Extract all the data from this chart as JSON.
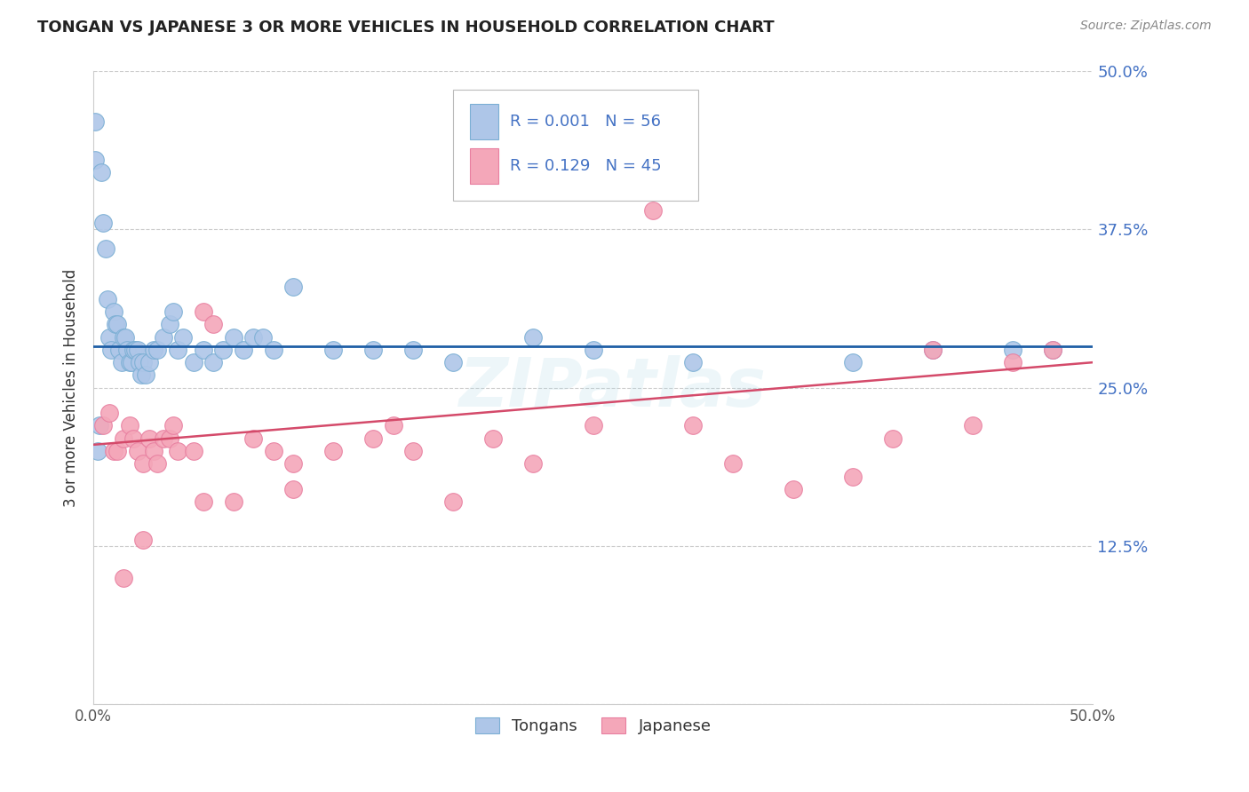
{
  "title": "TONGAN VS JAPANESE 3 OR MORE VEHICLES IN HOUSEHOLD CORRELATION CHART",
  "source": "Source: ZipAtlas.com",
  "ylabel": "3 or more Vehicles in Household",
  "xlim": [
    0.0,
    0.5
  ],
  "ylim": [
    0.0,
    0.5
  ],
  "ytick_vals": [
    0.0,
    0.125,
    0.25,
    0.375,
    0.5
  ],
  "ytick_labels": [
    "",
    "12.5%",
    "25.0%",
    "37.5%",
    "50.0%"
  ],
  "tongan_color": "#aec6e8",
  "japanese_color": "#f4a7b9",
  "tongan_line_color": "#1f5fa6",
  "japanese_line_color": "#d44a6a",
  "tongan_edge_color": "#7bafd4",
  "japanese_edge_color": "#e87fa0",
  "legend_text_color": "#4472C4",
  "legend_R_tongan": "R = 0.001",
  "legend_N_tongan": "N = 56",
  "legend_R_japanese": "R = 0.129",
  "legend_N_japanese": "N = 45",
  "background_color": "#ffffff",
  "grid_color": "#cccccc",
  "watermark": "ZIPatlas",
  "tongan_x": [
    0.001,
    0.001,
    0.002,
    0.003,
    0.004,
    0.005,
    0.006,
    0.007,
    0.008,
    0.009,
    0.01,
    0.011,
    0.012,
    0.013,
    0.014,
    0.015,
    0.016,
    0.017,
    0.018,
    0.019,
    0.02,
    0.021,
    0.022,
    0.023,
    0.024,
    0.025,
    0.026,
    0.028,
    0.03,
    0.032,
    0.035,
    0.038,
    0.04,
    0.042,
    0.045,
    0.05,
    0.055,
    0.06,
    0.065,
    0.07,
    0.075,
    0.08,
    0.085,
    0.09,
    0.1,
    0.12,
    0.14,
    0.16,
    0.18,
    0.22,
    0.25,
    0.3,
    0.38,
    0.42,
    0.46,
    0.48
  ],
  "tongan_y": [
    0.46,
    0.43,
    0.2,
    0.22,
    0.42,
    0.38,
    0.36,
    0.32,
    0.29,
    0.28,
    0.31,
    0.3,
    0.3,
    0.28,
    0.27,
    0.29,
    0.29,
    0.28,
    0.27,
    0.27,
    0.28,
    0.28,
    0.28,
    0.27,
    0.26,
    0.27,
    0.26,
    0.27,
    0.28,
    0.28,
    0.29,
    0.3,
    0.31,
    0.28,
    0.29,
    0.27,
    0.28,
    0.27,
    0.28,
    0.29,
    0.28,
    0.29,
    0.29,
    0.28,
    0.33,
    0.28,
    0.28,
    0.28,
    0.27,
    0.29,
    0.28,
    0.27,
    0.27,
    0.28,
    0.28,
    0.28
  ],
  "japanese_x": [
    0.005,
    0.008,
    0.01,
    0.012,
    0.015,
    0.018,
    0.02,
    0.022,
    0.025,
    0.028,
    0.03,
    0.032,
    0.035,
    0.038,
    0.04,
    0.042,
    0.05,
    0.055,
    0.06,
    0.07,
    0.08,
    0.09,
    0.1,
    0.12,
    0.14,
    0.15,
    0.16,
    0.18,
    0.2,
    0.22,
    0.25,
    0.28,
    0.3,
    0.32,
    0.35,
    0.38,
    0.4,
    0.42,
    0.44,
    0.46,
    0.48,
    0.015,
    0.025,
    0.055,
    0.1
  ],
  "japanese_y": [
    0.22,
    0.23,
    0.2,
    0.2,
    0.21,
    0.22,
    0.21,
    0.2,
    0.19,
    0.21,
    0.2,
    0.19,
    0.21,
    0.21,
    0.22,
    0.2,
    0.2,
    0.31,
    0.3,
    0.16,
    0.21,
    0.2,
    0.19,
    0.2,
    0.21,
    0.22,
    0.2,
    0.16,
    0.21,
    0.19,
    0.22,
    0.39,
    0.22,
    0.19,
    0.17,
    0.18,
    0.21,
    0.28,
    0.22,
    0.27,
    0.28,
    0.1,
    0.13,
    0.16,
    0.17
  ]
}
